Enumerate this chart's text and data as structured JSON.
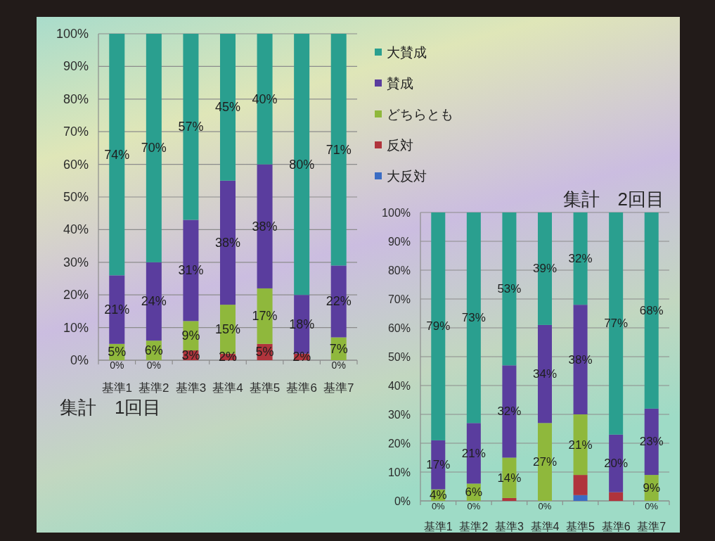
{
  "chart_data": [
    {
      "type": "bar",
      "title": "集計　1回目",
      "stacked": true,
      "categories": [
        "基準1",
        "基準2",
        "基準3",
        "基準4",
        "基準5",
        "基準6",
        "基準7"
      ],
      "ylim": [
        0,
        100
      ],
      "yticks": [
        {
          "value": 0,
          "label": "0%"
        },
        {
          "value": 10,
          "label": "10%"
        },
        {
          "value": 20,
          "label": "20%"
        },
        {
          "value": 30,
          "label": "30%"
        },
        {
          "value": 40,
          "label": "40%"
        },
        {
          "value": 50,
          "label": "50%"
        },
        {
          "value": 60,
          "label": "60%"
        },
        {
          "value": 70,
          "label": "70%"
        },
        {
          "value": 80,
          "label": "80%"
        },
        {
          "value": 90,
          "label": "90%"
        },
        {
          "value": 100,
          "label": "100%"
        }
      ],
      "grid": "y",
      "legend": "right",
      "series": [
        {
          "name": "大反対",
          "color": "#3b6cc4",
          "values": [
            0,
            0,
            0,
            0,
            0,
            0,
            0
          ]
        },
        {
          "name": "反対",
          "color": "#b0343c",
          "values": [
            0,
            0,
            3,
            2,
            5,
            2,
            0
          ],
          "value_labels": [
            null,
            null,
            "3%",
            "2%",
            "5%",
            "2%",
            null
          ]
        },
        {
          "name": "どちらとも",
          "color": "#8fb83c",
          "values": [
            5,
            6,
            9,
            15,
            17,
            0,
            7
          ],
          "value_labels": [
            "5%",
            "6%",
            "9%",
            "15%",
            "17%",
            null,
            "7%"
          ]
        },
        {
          "name": "賛成",
          "color": "#5a3d9e",
          "values": [
            21,
            24,
            31,
            38,
            38,
            18,
            22
          ],
          "value_labels": [
            "21%",
            "24%",
            "31%",
            "38%",
            "38%",
            "18%",
            "22%"
          ]
        },
        {
          "name": "大賛成",
          "color": "#2a9f8f",
          "values": [
            74,
            70,
            57,
            45,
            40,
            80,
            71
          ],
          "value_labels": [
            "74%",
            "70%",
            "57%",
            "45%",
            "40%",
            "80%",
            "71%"
          ]
        }
      ],
      "annotations": [
        {
          "text": "0%",
          "x": "基準1",
          "y": 0
        },
        {
          "text": "0%",
          "x": "基準2",
          "y": 0
        },
        {
          "text": "0%",
          "x": "基準7",
          "y": 0
        }
      ]
    },
    {
      "type": "bar",
      "title": "集計　2回目",
      "stacked": true,
      "categories": [
        "基準1",
        "基準2",
        "基準3",
        "基準4",
        "基準5",
        "基準6",
        "基準7"
      ],
      "ylim": [
        0,
        100
      ],
      "yticks": [
        {
          "value": 0,
          "label": "0%"
        },
        {
          "value": 10,
          "label": "10%"
        },
        {
          "value": 20,
          "label": "20%"
        },
        {
          "value": 30,
          "label": "30%"
        },
        {
          "value": 40,
          "label": "40%"
        },
        {
          "value": 50,
          "label": "50%"
        },
        {
          "value": 60,
          "label": "60%"
        },
        {
          "value": 70,
          "label": "70%"
        },
        {
          "value": 80,
          "label": "80%"
        },
        {
          "value": 90,
          "label": "90%"
        },
        {
          "value": 100,
          "label": "100%"
        }
      ],
      "grid": "y",
      "series": [
        {
          "color": "#3b6cc4",
          "values": [
            0,
            0,
            0,
            0,
            2,
            0,
            0
          ]
        },
        {
          "color": "#b0343c",
          "values": [
            0,
            0,
            1,
            0,
            7,
            3,
            0
          ]
        },
        {
          "color": "#8fb83c",
          "values": [
            4,
            6,
            14,
            27,
            21,
            0,
            9
          ],
          "value_labels": [
            "4%",
            "6%",
            "14%",
            "27%",
            "21%",
            null,
            "9%"
          ]
        },
        {
          "color": "#5a3d9e",
          "values": [
            17,
            21,
            32,
            34,
            38,
            20,
            23
          ],
          "value_labels": [
            "17%",
            "21%",
            "32%",
            "34%",
            "38%",
            "20%",
            "23%"
          ]
        },
        {
          "color": "#2a9f8f",
          "values": [
            79,
            73,
            53,
            39,
            32,
            77,
            68
          ],
          "value_labels": [
            "79%",
            "73%",
            "53%",
            "39%",
            "32%",
            "77%",
            "68%"
          ]
        }
      ],
      "annotations": [
        {
          "text": "0%",
          "x": "基準1",
          "y": 0
        },
        {
          "text": "0%",
          "x": "基準2",
          "y": 0
        },
        {
          "text": "0%",
          "x": "基準4",
          "y": 0
        },
        {
          "text": "0%",
          "x": "基準7",
          "y": 0
        }
      ]
    }
  ]
}
